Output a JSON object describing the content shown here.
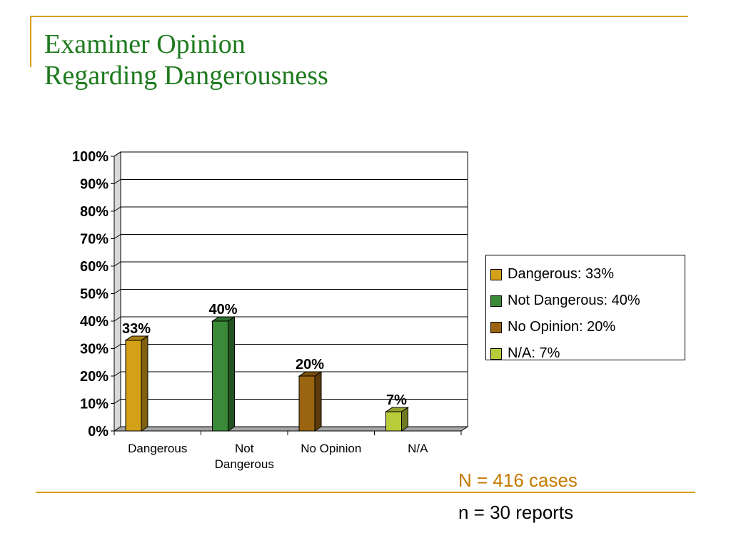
{
  "slide": {
    "title_line1": "Examiner Opinion",
    "title_line2": "Regarding Dangerousness",
    "note_total": "N = 416 cases",
    "note_reports": "n = 30 reports"
  },
  "colors": {
    "title": "#1e7a1e",
    "accent": "#d4a017"
  },
  "chart_data": {
    "type": "bar",
    "categories": [
      "Dangerous",
      "Not Dangerous",
      "No Opinion",
      "N/A"
    ],
    "category_label_lines": [
      [
        "Dangerous"
      ],
      [
        "Not",
        "Dangerous"
      ],
      [
        "No Opinion"
      ],
      [
        "N/A"
      ]
    ],
    "values": [
      33,
      40,
      20,
      7
    ],
    "data_labels": [
      "33%",
      "40%",
      "20%",
      "7%"
    ],
    "colors": [
      "#d4a017",
      "#3a8a3a",
      "#9a6410",
      "#b8cc3a"
    ],
    "ylim": [
      0,
      100
    ],
    "yticks": [
      0,
      10,
      20,
      30,
      40,
      50,
      60,
      70,
      80,
      90,
      100
    ],
    "ytick_labels": [
      "0%",
      "10%",
      "20%",
      "30%",
      "40%",
      "50%",
      "60%",
      "70%",
      "80%",
      "90%",
      "100%"
    ],
    "grid": true,
    "legend": {
      "placement": "right",
      "entries": [
        "Dangerous: 33%",
        "Not Dangerous: 40%",
        "No Opinion: 20%",
        "N/A: 7%"
      ]
    },
    "title": "",
    "xlabel": "",
    "ylabel": ""
  }
}
